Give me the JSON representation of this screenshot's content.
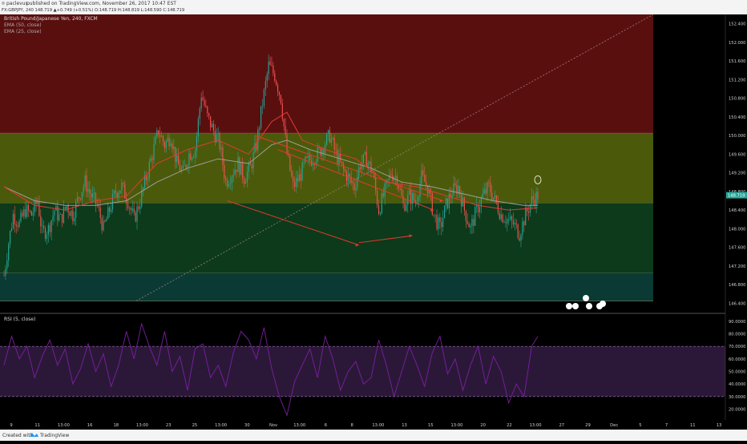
{
  "header": {
    "author": "paclevus",
    "published": "published on TradingView.com, November 26, 2017 10:47 EST",
    "symbol_line": "FX:GBPJPY, 240  148.719  ▲+0.749 (+0.51%)  O:148.719  H:148.819  L:148.590  C:148.719",
    "title": "British Pound/Japanese Yen, 240, FXCM",
    "ema50": "EMA (50, close)",
    "ema25": "EMA (25, close)",
    "rsi_label": "RSI (5, close)"
  },
  "footer": {
    "created_with": "Created with",
    "brand": "TradingView"
  },
  "colors": {
    "up": "#26a69a",
    "down": "#ef5350",
    "ema25": "#e53935",
    "ema50": "#9e9e9e",
    "rsi": "#7b1fa2",
    "zone_red": "#5a0f0f",
    "zone_olive": "#4a5a0a",
    "zone_green": "#0d3a1a",
    "zone_teal": "#0a3a33",
    "trend": "#e53935",
    "dotted": "#9e7e7e",
    "last_price_bg": "#26a69a"
  },
  "chart_data": {
    "type": "candlestick",
    "title": "British Pound/Japanese Yen, 240, FXCM",
    "symbol": "FX:GBPJPY",
    "interval": "240",
    "price_axis": {
      "ylim": [
        146.2,
        152.6
      ],
      "ticks": [
        "146.400",
        "146.800",
        "147.200",
        "147.600",
        "148.000",
        "148.400",
        "148.800",
        "149.200",
        "149.600",
        "150.000",
        "150.400",
        "150.800",
        "151.200",
        "151.600",
        "152.000",
        "152.400"
      ],
      "last_price": "148.719"
    },
    "rsi_axis": {
      "ylim": [
        12,
        95
      ],
      "ticks": [
        "20.0000",
        "30.0000",
        "40.0000",
        "50.0000",
        "60.0000",
        "70.0000",
        "80.0000",
        "90.0000"
      ],
      "overbought": 70,
      "oversold": 30
    },
    "x_ticks": [
      "9",
      "11",
      "13:00",
      "16",
      "18",
      "13:00",
      "23",
      "25",
      "13:00",
      "30",
      "Nov",
      "13:00",
      "6",
      "8",
      "13:00",
      "13",
      "15",
      "13:00",
      "20",
      "22",
      "13:00",
      "27",
      "29",
      "Dec",
      "5",
      "7",
      "11",
      "13"
    ],
    "zones": [
      {
        "name": "resistance",
        "from": 150.05,
        "to": 152.6
      },
      {
        "name": "upper-range",
        "from": 148.55,
        "to": 150.05
      },
      {
        "name": "lower-range",
        "from": 147.05,
        "to": 148.55
      },
      {
        "name": "support",
        "from": 146.45,
        "to": 147.05
      }
    ],
    "close_path": [
      [
        0,
        147.0
      ],
      [
        3,
        147.7
      ],
      [
        6,
        148.3
      ],
      [
        10,
        148.1
      ],
      [
        14,
        148.4
      ],
      [
        18,
        148.3
      ],
      [
        22,
        148.6
      ],
      [
        25,
        147.9
      ],
      [
        29,
        148.0
      ],
      [
        33,
        148.4
      ],
      [
        37,
        148.2
      ],
      [
        41,
        148.5
      ],
      [
        45,
        148.3
      ],
      [
        49,
        148.7
      ],
      [
        53,
        149.0
      ],
      [
        57,
        148.7
      ],
      [
        61,
        148.5
      ],
      [
        65,
        148.0
      ],
      [
        69,
        148.4
      ],
      [
        73,
        148.8
      ],
      [
        77,
        148.9
      ],
      [
        81,
        148.6
      ],
      [
        85,
        148.2
      ],
      [
        89,
        148.6
      ],
      [
        93,
        149.1
      ],
      [
        97,
        149.6
      ],
      [
        101,
        150.1
      ],
      [
        105,
        149.8
      ],
      [
        109,
        150.0
      ],
      [
        113,
        149.4
      ],
      [
        117,
        149.2
      ],
      [
        121,
        149.6
      ],
      [
        125,
        149.7
      ],
      [
        129,
        150.9
      ],
      [
        133,
        150.4
      ],
      [
        137,
        150.1
      ],
      [
        141,
        149.8
      ],
      [
        145,
        149.0
      ],
      [
        149,
        149.2
      ],
      [
        153,
        149.4
      ],
      [
        157,
        149.1
      ],
      [
        161,
        149.3
      ],
      [
        165,
        149.8
      ],
      [
        169,
        150.7
      ],
      [
        173,
        151.5
      ],
      [
        177,
        151.3
      ],
      [
        181,
        150.8
      ],
      [
        185,
        149.6
      ],
      [
        189,
        148.9
      ],
      [
        193,
        149.1
      ],
      [
        197,
        149.4
      ],
      [
        201,
        149.5
      ],
      [
        205,
        149.6
      ],
      [
        209,
        149.8
      ],
      [
        213,
        150.0
      ],
      [
        217,
        149.6
      ],
      [
        221,
        149.3
      ],
      [
        225,
        149.1
      ],
      [
        229,
        148.9
      ],
      [
        233,
        149.4
      ],
      [
        237,
        149.5
      ],
      [
        241,
        149.2
      ],
      [
        245,
        148.4
      ],
      [
        249,
        148.8
      ],
      [
        253,
        149.2
      ],
      [
        257,
        149.1
      ],
      [
        261,
        148.5
      ],
      [
        265,
        148.7
      ],
      [
        269,
        148.6
      ],
      [
        273,
        149.1
      ],
      [
        277,
        148.9
      ],
      [
        281,
        148.3
      ],
      [
        285,
        148.0
      ],
      [
        289,
        148.5
      ],
      [
        293,
        148.8
      ],
      [
        297,
        148.9
      ],
      [
        301,
        148.4
      ],
      [
        305,
        148.0
      ],
      [
        309,
        148.4
      ],
      [
        313,
        148.7
      ],
      [
        317,
        148.9
      ],
      [
        321,
        148.6
      ],
      [
        325,
        148.3
      ],
      [
        329,
        148.2
      ],
      [
        333,
        148.1
      ],
      [
        337,
        147.9
      ],
      [
        341,
        148.3
      ],
      [
        345,
        148.6
      ],
      [
        349,
        148.72
      ]
    ],
    "ema25_path": [
      [
        0,
        148.9
      ],
      [
        20,
        148.5
      ],
      [
        40,
        148.4
      ],
      [
        60,
        148.6
      ],
      [
        80,
        148.7
      ],
      [
        100,
        149.4
      ],
      [
        120,
        149.7
      ],
      [
        140,
        149.9
      ],
      [
        160,
        149.6
      ],
      [
        175,
        150.3
      ],
      [
        185,
        150.5
      ],
      [
        195,
        149.9
      ],
      [
        210,
        149.7
      ],
      [
        230,
        149.5
      ],
      [
        250,
        149.0
      ],
      [
        270,
        148.9
      ],
      [
        290,
        148.7
      ],
      [
        310,
        148.5
      ],
      [
        330,
        148.4
      ],
      [
        349,
        148.45
      ]
    ],
    "ema50_path": [
      [
        0,
        148.9
      ],
      [
        20,
        148.6
      ],
      [
        40,
        148.5
      ],
      [
        60,
        148.5
      ],
      [
        80,
        148.6
      ],
      [
        100,
        149.0
      ],
      [
        120,
        149.3
      ],
      [
        140,
        149.5
      ],
      [
        160,
        149.4
      ],
      [
        175,
        149.8
      ],
      [
        185,
        149.9
      ],
      [
        200,
        149.7
      ],
      [
        220,
        149.5
      ],
      [
        240,
        149.3
      ],
      [
        260,
        149.0
      ],
      [
        280,
        148.9
      ],
      [
        300,
        148.75
      ],
      [
        320,
        148.6
      ],
      [
        340,
        148.5
      ],
      [
        349,
        148.5
      ]
    ],
    "rsi_path": [
      [
        0,
        55
      ],
      [
        5,
        78
      ],
      [
        10,
        60
      ],
      [
        15,
        70
      ],
      [
        20,
        45
      ],
      [
        25,
        62
      ],
      [
        30,
        75
      ],
      [
        35,
        55
      ],
      [
        40,
        68
      ],
      [
        45,
        40
      ],
      [
        50,
        52
      ],
      [
        55,
        72
      ],
      [
        60,
        50
      ],
      [
        65,
        64
      ],
      [
        70,
        38
      ],
      [
        75,
        55
      ],
      [
        80,
        82
      ],
      [
        85,
        60
      ],
      [
        90,
        88
      ],
      [
        95,
        70
      ],
      [
        100,
        55
      ],
      [
        105,
        82
      ],
      [
        110,
        50
      ],
      [
        115,
        62
      ],
      [
        120,
        35
      ],
      [
        125,
        68
      ],
      [
        130,
        72
      ],
      [
        135,
        45
      ],
      [
        140,
        55
      ],
      [
        145,
        38
      ],
      [
        150,
        65
      ],
      [
        155,
        82
      ],
      [
        160,
        75
      ],
      [
        165,
        60
      ],
      [
        170,
        85
      ],
      [
        175,
        52
      ],
      [
        180,
        30
      ],
      [
        185,
        15
      ],
      [
        190,
        42
      ],
      [
        195,
        55
      ],
      [
        200,
        68
      ],
      [
        205,
        45
      ],
      [
        210,
        78
      ],
      [
        215,
        60
      ],
      [
        220,
        35
      ],
      [
        225,
        50
      ],
      [
        230,
        58
      ],
      [
        235,
        40
      ],
      [
        240,
        45
      ],
      [
        245,
        75
      ],
      [
        250,
        55
      ],
      [
        255,
        30
      ],
      [
        260,
        50
      ],
      [
        265,
        70
      ],
      [
        270,
        55
      ],
      [
        275,
        38
      ],
      [
        280,
        65
      ],
      [
        285,
        78
      ],
      [
        290,
        48
      ],
      [
        295,
        60
      ],
      [
        300,
        35
      ],
      [
        305,
        55
      ],
      [
        310,
        70
      ],
      [
        315,
        40
      ],
      [
        320,
        62
      ],
      [
        325,
        50
      ],
      [
        330,
        25
      ],
      [
        335,
        40
      ],
      [
        340,
        30
      ],
      [
        345,
        70
      ],
      [
        349,
        78
      ]
    ],
    "trendlines": [
      {
        "name": "upper-channel",
        "from": [
          164,
          150.0
        ],
        "to": [
          287,
          148.6
        ]
      },
      {
        "name": "lower-channel",
        "from": [
          146,
          148.6
        ],
        "to": [
          232,
          147.65
        ]
      },
      {
        "name": "inner-line",
        "from": [
          179,
          149.7
        ],
        "to": [
          281,
          148.4
        ]
      },
      {
        "name": "low-arrow",
        "from": [
          232,
          147.7
        ],
        "to": [
          267,
          147.85
        ]
      }
    ]
  }
}
